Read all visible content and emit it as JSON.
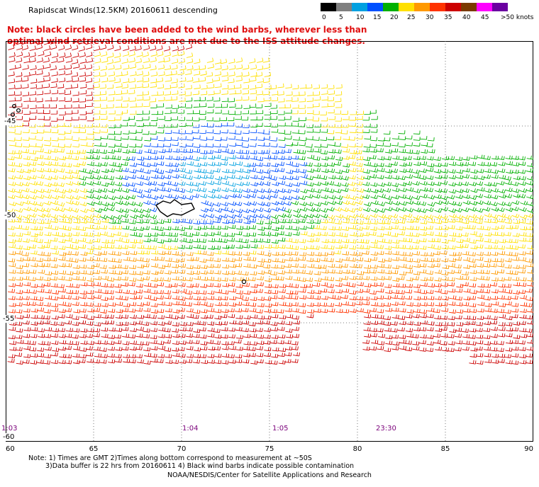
{
  "title": "Rapidscat Winds(12.5KM) 20160611 descending",
  "note": "Note: black circles have been added to the wind barbs, wherever less than optimal wind retrieval conditions are met due to the ISS attitude changes.",
  "legend": {
    "labels": [
      "0",
      "5",
      "10",
      "15",
      "20",
      "25",
      "30",
      "35",
      "40",
      "45",
      ">50 knots"
    ],
    "colors": [
      "#000000",
      "#7f7f7f",
      "#00a0e0",
      "#0050ff",
      "#00b000",
      "#ffe000",
      "#ff9900",
      "#ff3300",
      "#cc0000",
      "#7a3a00",
      "#ff00ff",
      "#6a00a0"
    ]
  },
  "map": {
    "x_ticks": [
      "60",
      "65",
      "70",
      "75",
      "80",
      "85",
      "90"
    ],
    "y_labels": [
      "-45",
      "-50",
      "-55",
      "-60"
    ],
    "pass_times": [
      "1:03",
      "1:04",
      "1:05",
      "23:30"
    ]
  },
  "footnotes": {
    "line1": "Note: 1) Times are GMT 2)Times along bottom correspond to measurement at ~50S",
    "line2": "3)Data buffer is 22 hrs from 20160611 4) Black wind barbs indicate possible contamination"
  },
  "credit": "NOAA/NESDIS/Center for Satellite Applications and Research"
}
